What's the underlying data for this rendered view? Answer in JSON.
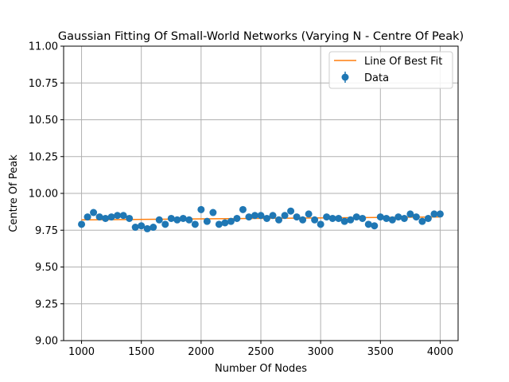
{
  "chart_data": {
    "type": "scatter",
    "title": "Gaussian Fitting Of Small-World Networks (Varying N - Centre Of Peak)",
    "xlabel": "Number Of Nodes",
    "ylabel": "Centre Of Peak",
    "xlim": [
      850,
      4150
    ],
    "ylim": [
      9.0,
      11.0
    ],
    "xticks": [
      1000,
      1500,
      2000,
      2500,
      3000,
      3500,
      4000
    ],
    "yticks": [
      9.0,
      9.25,
      9.5,
      9.75,
      10.0,
      10.25,
      10.5,
      10.75,
      11.0
    ],
    "ytick_labels": [
      "9.00",
      "9.25",
      "9.50",
      "9.75",
      "10.00",
      "10.25",
      "10.50",
      "10.75",
      "11.00"
    ],
    "grid": true,
    "legend_position": "top-right",
    "colors": {
      "data": "#1f77b4",
      "fit": "#ff7f0e",
      "grid": "#b0b0b0"
    },
    "series": [
      {
        "name": "Data",
        "kind": "errorbar-points",
        "x": [
          1000,
          1050,
          1100,
          1150,
          1200,
          1250,
          1300,
          1350,
          1400,
          1450,
          1500,
          1550,
          1600,
          1650,
          1700,
          1750,
          1800,
          1850,
          1900,
          1950,
          2000,
          2050,
          2100,
          2150,
          2200,
          2250,
          2300,
          2350,
          2400,
          2450,
          2500,
          2550,
          2600,
          2650,
          2700,
          2750,
          2800,
          2850,
          2900,
          2950,
          3000,
          3050,
          3100,
          3150,
          3200,
          3250,
          3300,
          3350,
          3400,
          3450,
          3500,
          3550,
          3600,
          3650,
          3700,
          3750,
          3800,
          3850,
          3900,
          3950,
          4000
        ],
        "y": [
          9.79,
          9.84,
          9.87,
          9.84,
          9.83,
          9.84,
          9.85,
          9.85,
          9.83,
          9.77,
          9.78,
          9.76,
          9.77,
          9.82,
          9.79,
          9.83,
          9.82,
          9.83,
          9.82,
          9.79,
          9.89,
          9.81,
          9.87,
          9.79,
          9.8,
          9.81,
          9.83,
          9.89,
          9.84,
          9.85,
          9.85,
          9.83,
          9.85,
          9.82,
          9.85,
          9.88,
          9.84,
          9.82,
          9.86,
          9.82,
          9.79,
          9.84,
          9.83,
          9.83,
          9.81,
          9.82,
          9.84,
          9.83,
          9.79,
          9.78,
          9.84,
          9.83,
          9.82,
          9.84,
          9.83,
          9.86,
          9.84,
          9.81,
          9.83,
          9.86,
          9.86
        ]
      },
      {
        "name": "Line Of Best Fit",
        "kind": "line",
        "x": [
          1000,
          4000
        ],
        "y": [
          9.82,
          9.84
        ]
      }
    ]
  }
}
